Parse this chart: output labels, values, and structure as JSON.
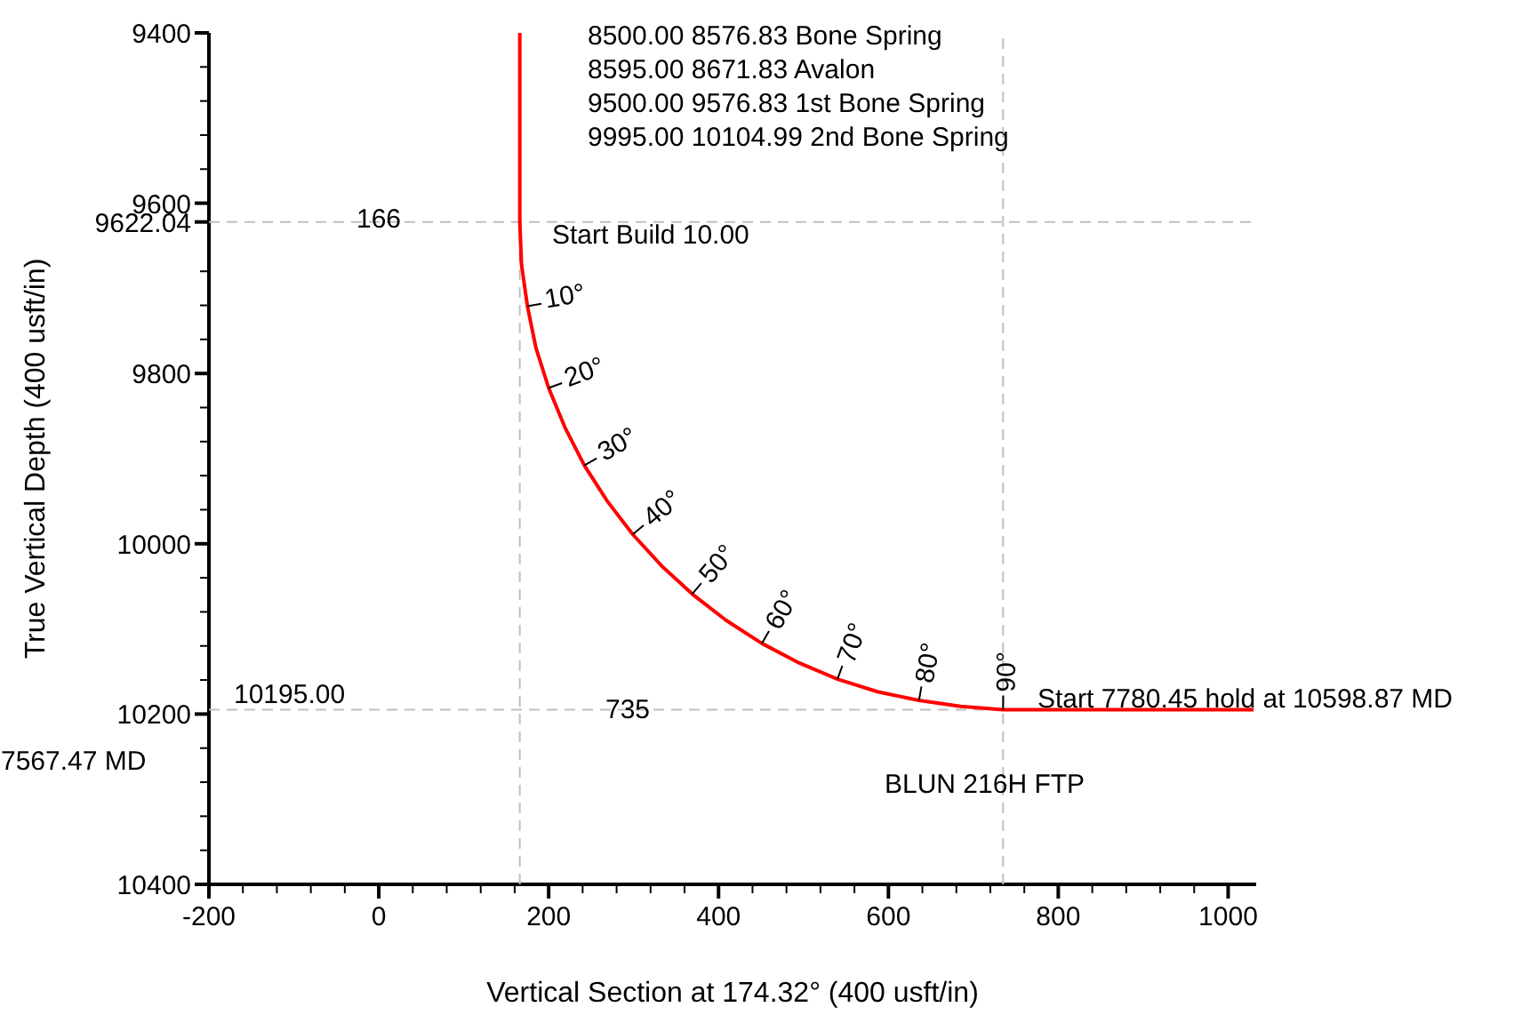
{
  "chart_data": {
    "type": "line",
    "xlabel": "Vertical Section at 174.32° (400 usft/in)",
    "ylabel": "True Vertical Depth (400 usft/in)",
    "x": [
      166,
      166,
      168,
      175,
      185,
      200,
      219,
      242,
      269,
      299,
      333,
      369,
      409,
      451,
      495,
      540,
      588,
      636,
      685,
      735,
      1030
    ],
    "series": [
      {
        "color": "#ff0000",
        "values": [
          9400,
          9622,
          9672,
          9721,
          9770,
          9817,
          9863,
          9908,
          9950,
          9989,
          10026,
          10059,
          10090,
          10117,
          10140,
          10159,
          10174,
          10184,
          10191,
          10195,
          10195
        ]
      }
    ],
    "xlim": [
      -200,
      1033
    ],
    "ylim": [
      10400,
      9400
    ],
    "xticks": [
      -200,
      {
        "value": -160,
        "label": null
      },
      {
        "value": -120,
        "label": null
      },
      {
        "value": -80,
        "label": null
      },
      {
        "value": -40,
        "label": null
      },
      0,
      {
        "value": 40,
        "label": null
      },
      {
        "value": 80,
        "label": null
      },
      {
        "value": 120,
        "label": null
      },
      {
        "value": 160,
        "label": null
      },
      200,
      {
        "value": 240,
        "label": null
      },
      {
        "value": 280,
        "label": null
      },
      {
        "value": 320,
        "label": null
      },
      {
        "value": 360,
        "label": null
      },
      400,
      {
        "value": 440,
        "label": null
      },
      {
        "value": 480,
        "label": null
      },
      {
        "value": 520,
        "label": null
      },
      {
        "value": 560,
        "label": null
      },
      600,
      {
        "value": 640,
        "label": null
      },
      {
        "value": 680,
        "label": null
      },
      {
        "value": 720,
        "label": null
      },
      {
        "value": 760,
        "label": null
      },
      800,
      {
        "value": 840,
        "label": null
      },
      {
        "value": 880,
        "label": null
      },
      {
        "value": 920,
        "label": null
      },
      {
        "value": 960,
        "label": null
      },
      1000
    ],
    "yticks": [
      9400,
      {
        "value": 9440,
        "label": null
      },
      {
        "value": 9480,
        "label": null
      },
      {
        "value": 9520,
        "label": null
      },
      {
        "value": 9560,
        "label": null
      },
      9600,
      {
        "value": 9622.04,
        "label": "9622.04"
      },
      {
        "value": 9680,
        "label": null
      },
      {
        "value": 9720,
        "label": null
      },
      {
        "value": 9760,
        "label": null
      },
      9800,
      {
        "value": 9840,
        "label": null
      },
      {
        "value": 9880,
        "label": null
      },
      {
        "value": 9920,
        "label": null
      },
      {
        "value": 9960,
        "label": null
      },
      10000,
      {
        "value": 10040,
        "label": null
      },
      {
        "value": 10080,
        "label": null
      },
      {
        "value": 10120,
        "label": null
      },
      {
        "value": 10160,
        "label": null
      },
      10200,
      {
        "value": 10240,
        "label": null
      },
      {
        "value": 10280,
        "label": null
      },
      {
        "value": 10320,
        "label": null
      },
      {
        "value": 10360,
        "label": null
      },
      10400
    ],
    "ref_lines": [
      {
        "axis": "y",
        "value": 9622.04,
        "color": "#c0c0c0",
        "line_style": "dashed"
      },
      {
        "axis": "y",
        "value": 10195,
        "label": "10195.00",
        "color": "#c0c0c0",
        "line_style": "dashed"
      },
      {
        "axis": "x",
        "value": 166,
        "color": "#c0c0c0",
        "line_style": "dashed"
      },
      {
        "axis": "x",
        "value": 735,
        "color": "#c0c0c0",
        "line_style": "dashed"
      }
    ],
    "annotations": [
      "8500.00   8576.83   Bone Spring",
      "8595.00   8671.83   Avalon",
      "9500.00   9576.83   1st Bone Spring",
      "9995.00  10104.99   2nd Bone Spring",
      "Start Build 10.00",
      "Start 7780.45 hold at 10598.87 MD",
      "BLUN 216H FTP",
      "166",
      "735",
      "7567.47 MD",
      {
        "text": "10°",
        "x": 175,
        "y": 9721
      },
      {
        "text": "20°",
        "x": 200,
        "y": 9817
      },
      {
        "text": "30°",
        "x": 242,
        "y": 9908
      },
      {
        "text": "40°",
        "x": 299,
        "y": 9989
      },
      {
        "text": "50°",
        "x": 369,
        "y": 10059
      },
      {
        "text": "60°",
        "x": 451,
        "y": 10117
      },
      {
        "text": "70°",
        "x": 540,
        "y": 10159
      },
      {
        "text": "80°",
        "x": 636,
        "y": 10184
      },
      {
        "text": "90°",
        "x": 735,
        "y": 10195
      }
    ],
    "grid": false,
    "line_style": "solid",
    "marker": "none"
  }
}
